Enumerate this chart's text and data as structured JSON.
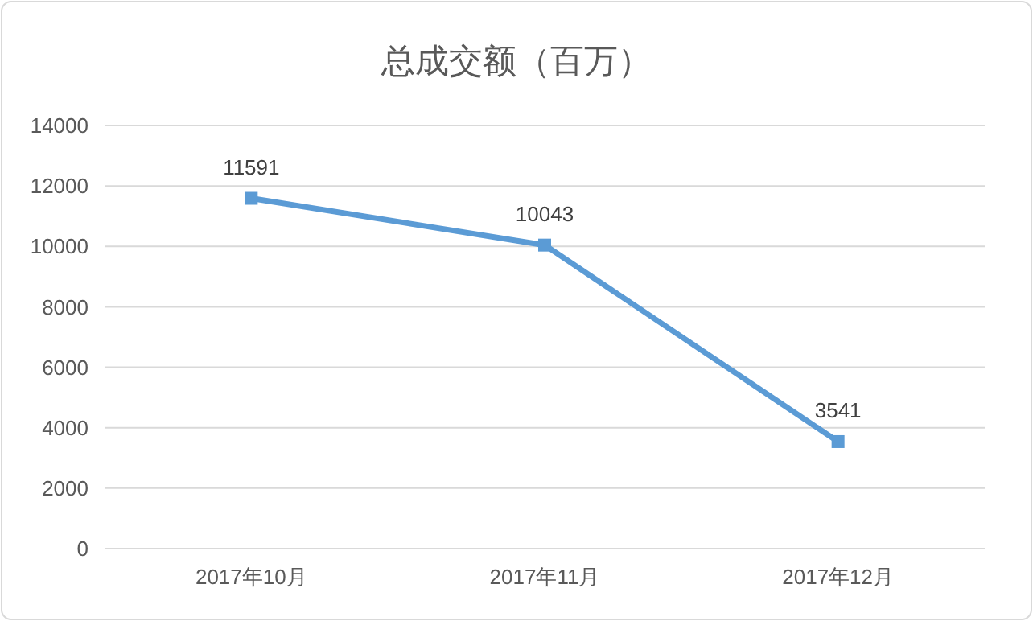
{
  "chart_data": {
    "type": "line",
    "title": "总成交额（百万）",
    "categories": [
      "2017年10月",
      "2017年11月",
      "2017年12月"
    ],
    "series": [
      {
        "color": "#5b9bd5",
        "values": [
          11591,
          10043,
          3541
        ]
      }
    ],
    "ylim": [
      0,
      14000
    ],
    "yticks": [
      0,
      2000,
      4000,
      6000,
      8000,
      10000,
      12000,
      14000
    ],
    "grid": "y",
    "marker": "square",
    "line_style": "solid",
    "data_labels": true
  }
}
